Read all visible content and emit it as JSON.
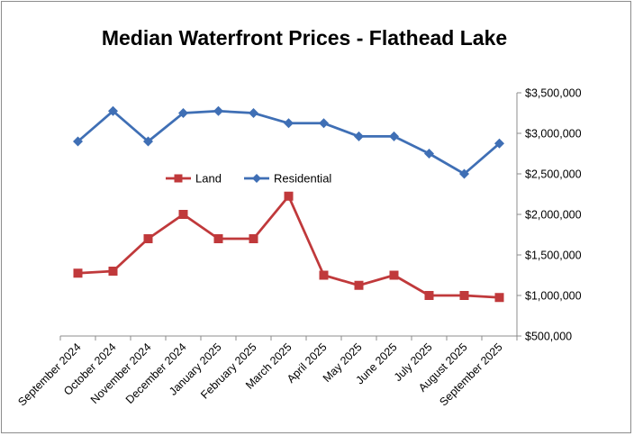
{
  "chart_data": {
    "type": "line",
    "title": "Median Waterfront Prices - Flathead Lake",
    "xlabel": "",
    "ylabel": "",
    "categories": [
      "September 2024",
      "October 2024",
      "November 2024",
      "December 2024",
      "January 2025",
      "February 2025",
      "March 2025",
      "April 2025",
      "May 2025",
      "June 2025",
      "July 2025",
      "August 2025",
      "September 2025"
    ],
    "ylim": [
      500000,
      3500000
    ],
    "yticks": [
      500000,
      1000000,
      1500000,
      2000000,
      2500000,
      3000000,
      3500000
    ],
    "ytick_labels": [
      "$500,000",
      "$1,000,000",
      "$1,500,000",
      "$2,000,000",
      "$2,500,000",
      "$3,000,000",
      "$3,500,000"
    ],
    "y_axis_position": "right",
    "grid": false,
    "legend_position": "inside-upper-left",
    "series": [
      {
        "name": "Land",
        "color": "#c0393b",
        "marker": "square",
        "values": [
          1275000,
          1300000,
          1700000,
          2000000,
          1700000,
          1700000,
          2225000,
          1250000,
          1125000,
          1250000,
          1000000,
          1000000,
          975000
        ]
      },
      {
        "name": "Residential",
        "color": "#3f6fb5",
        "marker": "diamond",
        "values": [
          2900000,
          3275000,
          2900000,
          3250000,
          3275000,
          3250000,
          3125000,
          3125000,
          2962500,
          2962500,
          2750000,
          2500000,
          2875000
        ]
      }
    ]
  }
}
